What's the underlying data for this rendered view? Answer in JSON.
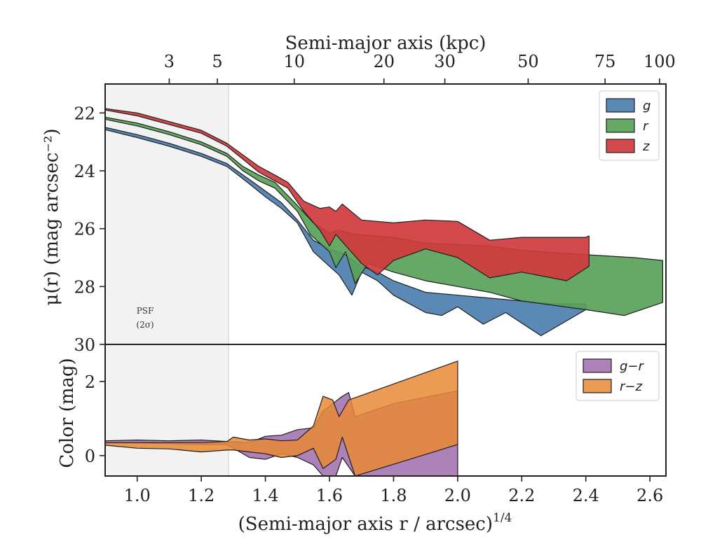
{
  "chart_data": [
    {
      "type": "area",
      "panel": "surface-brightness",
      "xlabel_math": "(Semi-major axis r / arcsec)",
      "xlabel_sup": "1/4",
      "ylabel": "μ(r) (mag arcsec⁻²)",
      "top_xlabel": "Semi-major axis (kpc)",
      "xlim": [
        0.9,
        2.65
      ],
      "ylim": [
        30,
        21
      ],
      "y_ticks": [
        "22",
        "24",
        "26",
        "28",
        "30"
      ],
      "top_ticks": [
        {
          "label": "3",
          "x": 1.1
        },
        {
          "label": "5",
          "x": 1.25
        },
        {
          "label": "10",
          "x": 1.49
        },
        {
          "label": "20",
          "x": 1.77
        },
        {
          "label": "30",
          "x": 1.96
        },
        {
          "label": "50",
          "x": 2.22
        },
        {
          "label": "75",
          "x": 2.46
        },
        {
          "label": "100",
          "x": 2.63
        }
      ],
      "psf_region": {
        "x": [
          0.9,
          1.285
        ],
        "label_line1": "PSF",
        "label_line2": "(2σ)"
      },
      "legend_position": "upper right",
      "series": [
        {
          "name": "g",
          "color": "#4c7fb0",
          "upper": [
            [
              0.9,
              22.5
            ],
            [
              1.0,
              22.75
            ],
            [
              1.1,
              23.05
            ],
            [
              1.2,
              23.4
            ],
            [
              1.28,
              23.75
            ],
            [
              1.35,
              24.3
            ],
            [
              1.4,
              24.7
            ],
            [
              1.45,
              25.1
            ],
            [
              1.5,
              25.7
            ],
            [
              1.55,
              26.4
            ],
            [
              1.6,
              26.7
            ],
            [
              1.65,
              26.9
            ],
            [
              1.7,
              27.3
            ],
            [
              1.75,
              27.5
            ],
            [
              1.8,
              27.8
            ],
            [
              1.9,
              28.2
            ],
            [
              2.0,
              28.3
            ],
            [
              2.1,
              28.4
            ],
            [
              2.2,
              28.5
            ],
            [
              2.3,
              28.6
            ],
            [
              2.4,
              28.6
            ]
          ],
          "lower": [
            [
              0.9,
              22.58
            ],
            [
              1.0,
              22.85
            ],
            [
              1.1,
              23.15
            ],
            [
              1.2,
              23.5
            ],
            [
              1.28,
              23.85
            ],
            [
              1.35,
              24.45
            ],
            [
              1.4,
              24.9
            ],
            [
              1.45,
              25.3
            ],
            [
              1.5,
              25.8
            ],
            [
              1.55,
              26.8
            ],
            [
              1.6,
              27.3
            ],
            [
              1.63,
              27.6
            ],
            [
              1.67,
              28.3
            ],
            [
              1.7,
              27.5
            ],
            [
              1.75,
              27.8
            ],
            [
              1.8,
              28.3
            ],
            [
              1.9,
              28.9
            ],
            [
              1.95,
              29.0
            ],
            [
              2.0,
              28.7
            ],
            [
              2.08,
              29.3
            ],
            [
              2.15,
              28.9
            ],
            [
              2.26,
              29.7
            ],
            [
              2.4,
              28.8
            ]
          ]
        },
        {
          "name": "r",
          "color": "#59a25a",
          "upper": [
            [
              0.9,
              22.15
            ],
            [
              1.0,
              22.35
            ],
            [
              1.1,
              22.65
            ],
            [
              1.2,
              23.0
            ],
            [
              1.28,
              23.4
            ],
            [
              1.33,
              23.85
            ],
            [
              1.38,
              24.15
            ],
            [
              1.43,
              24.4
            ],
            [
              1.5,
              25.2
            ],
            [
              1.55,
              25.8
            ],
            [
              1.6,
              26.15
            ],
            [
              1.63,
              26.05
            ],
            [
              1.68,
              26.2
            ],
            [
              1.8,
              26.3
            ],
            [
              1.9,
              26.5
            ],
            [
              2.0,
              26.55
            ],
            [
              2.1,
              26.6
            ],
            [
              2.2,
              26.75
            ],
            [
              2.4,
              26.9
            ],
            [
              2.55,
              27.0
            ],
            [
              2.64,
              27.1
            ]
          ],
          "lower": [
            [
              0.9,
              22.22
            ],
            [
              1.0,
              22.45
            ],
            [
              1.1,
              22.75
            ],
            [
              1.2,
              23.1
            ],
            [
              1.28,
              23.5
            ],
            [
              1.33,
              24.0
            ],
            [
              1.38,
              24.35
            ],
            [
              1.43,
              24.6
            ],
            [
              1.5,
              25.4
            ],
            [
              1.54,
              26.2
            ],
            [
              1.6,
              26.8
            ],
            [
              1.62,
              27.35
            ],
            [
              1.65,
              26.8
            ],
            [
              1.68,
              27.9
            ],
            [
              1.72,
              27.2
            ],
            [
              1.8,
              27.5
            ],
            [
              1.9,
              27.8
            ],
            [
              2.0,
              28.0
            ],
            [
              2.1,
              28.2
            ],
            [
              2.2,
              28.5
            ],
            [
              2.4,
              28.8
            ],
            [
              2.52,
              29.0
            ],
            [
              2.64,
              28.55
            ]
          ]
        },
        {
          "name": "z",
          "color": "#d0393d",
          "upper": [
            [
              0.9,
              21.85
            ],
            [
              1.0,
              22.0
            ],
            [
              1.1,
              22.3
            ],
            [
              1.2,
              22.6
            ],
            [
              1.28,
              23.05
            ],
            [
              1.33,
              23.45
            ],
            [
              1.38,
              23.85
            ],
            [
              1.43,
              24.15
            ],
            [
              1.47,
              24.4
            ],
            [
              1.52,
              25.05
            ],
            [
              1.57,
              25.3
            ],
            [
              1.6,
              25.25
            ],
            [
              1.62,
              25.4
            ],
            [
              1.64,
              25.15
            ],
            [
              1.7,
              25.7
            ],
            [
              1.8,
              25.8
            ],
            [
              1.9,
              25.7
            ],
            [
              2.0,
              25.75
            ],
            [
              2.1,
              26.4
            ],
            [
              2.2,
              26.3
            ],
            [
              2.4,
              26.3
            ],
            [
              2.41,
              26.25
            ]
          ],
          "lower": [
            [
              0.9,
              21.9
            ],
            [
              1.0,
              22.1
            ],
            [
              1.1,
              22.4
            ],
            [
              1.2,
              22.7
            ],
            [
              1.28,
              23.15
            ],
            [
              1.33,
              23.6
            ],
            [
              1.38,
              24.05
            ],
            [
              1.43,
              24.35
            ],
            [
              1.47,
              24.6
            ],
            [
              1.52,
              25.4
            ],
            [
              1.57,
              26.05
            ],
            [
              1.6,
              26.6
            ],
            [
              1.62,
              26.2
            ],
            [
              1.66,
              26.7
            ],
            [
              1.7,
              27.2
            ],
            [
              1.75,
              27.6
            ],
            [
              1.8,
              27.1
            ],
            [
              1.9,
              26.7
            ],
            [
              2.0,
              27.0
            ],
            [
              2.1,
              27.7
            ],
            [
              2.2,
              27.5
            ],
            [
              2.34,
              27.8
            ],
            [
              2.41,
              27.3
            ]
          ]
        }
      ]
    },
    {
      "type": "area",
      "panel": "color",
      "ylabel": "Color (mag)",
      "xlim": [
        0.9,
        2.65
      ],
      "ylim": [
        -0.55,
        3.0
      ],
      "y_ticks": [
        "0",
        "2"
      ],
      "x_ticks": [
        "1.0",
        "1.2",
        "1.4",
        "1.6",
        "1.8",
        "2.0",
        "2.2",
        "2.4",
        "2.6"
      ],
      "legend_position": "upper right",
      "series": [
        {
          "name": "g−r",
          "color": "#9e6cad",
          "upper": [
            [
              0.9,
              0.4
            ],
            [
              1.0,
              0.42
            ],
            [
              1.1,
              0.4
            ],
            [
              1.2,
              0.42
            ],
            [
              1.28,
              0.38
            ],
            [
              1.35,
              0.35
            ],
            [
              1.4,
              0.52
            ],
            [
              1.45,
              0.55
            ],
            [
              1.5,
              0.7
            ],
            [
              1.55,
              0.75
            ],
            [
              1.58,
              1.2
            ],
            [
              1.61,
              1.4
            ],
            [
              1.64,
              1.6
            ],
            [
              1.66,
              1.7
            ],
            [
              1.68,
              1.05
            ],
            [
              1.8,
              1.4
            ],
            [
              2.0,
              1.75
            ]
          ],
          "lower": [
            [
              2.0,
              -0.6
            ],
            [
              1.88,
              -0.6
            ],
            [
              1.72,
              -0.6
            ],
            [
              1.68,
              -0.6
            ],
            [
              1.64,
              -0.05
            ],
            [
              1.62,
              -0.6
            ],
            [
              1.58,
              -0.6
            ],
            [
              1.55,
              -0.25
            ],
            [
              1.5,
              -0.05
            ],
            [
              1.45,
              0.05
            ],
            [
              1.4,
              -0.1
            ],
            [
              1.35,
              -0.05
            ],
            [
              1.28,
              0.3
            ],
            [
              1.2,
              0.3
            ],
            [
              1.1,
              0.32
            ],
            [
              1.0,
              0.34
            ],
            [
              0.9,
              0.34
            ]
          ]
        },
        {
          "name": "r−z",
          "color": "#e88a35",
          "upper": [
            [
              0.9,
              0.35
            ],
            [
              1.0,
              0.35
            ],
            [
              1.1,
              0.35
            ],
            [
              1.2,
              0.35
            ],
            [
              1.28,
              0.38
            ],
            [
              1.3,
              0.5
            ],
            [
              1.35,
              0.42
            ],
            [
              1.4,
              0.45
            ],
            [
              1.45,
              0.4
            ],
            [
              1.5,
              0.42
            ],
            [
              1.55,
              0.8
            ],
            [
              1.58,
              1.6
            ],
            [
              1.61,
              1.5
            ],
            [
              1.63,
              1.05
            ],
            [
              1.66,
              1.5
            ],
            [
              2.0,
              2.55
            ]
          ],
          "lower": [
            [
              2.0,
              0.3
            ],
            [
              1.85,
              -0.1
            ],
            [
              1.68,
              -0.6
            ],
            [
              1.64,
              0.5
            ],
            [
              1.62,
              -0.1
            ],
            [
              1.58,
              -0.35
            ],
            [
              1.55,
              0.2
            ],
            [
              1.5,
              0.0
            ],
            [
              1.45,
              -0.05
            ],
            [
              1.4,
              0.05
            ],
            [
              1.35,
              0.1
            ],
            [
              1.3,
              0.15
            ],
            [
              1.28,
              0.15
            ],
            [
              1.2,
              0.1
            ],
            [
              1.1,
              0.18
            ],
            [
              1.0,
              0.2
            ],
            [
              0.9,
              0.28
            ]
          ]
        }
      ]
    }
  ]
}
